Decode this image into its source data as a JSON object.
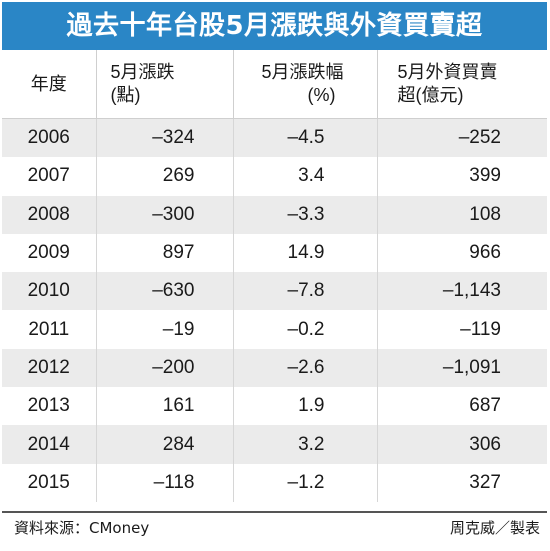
{
  "title": "過去十年台股5月漲跌與外資買賣超",
  "headers": {
    "year": "年度",
    "points_l1": "5月漲跌",
    "points_l2": "(點)",
    "pct_l1": "5月漲跌幅",
    "pct_l2": "(%)",
    "foreign_l1": "5月外資買賣",
    "foreign_l2": "超(億元)"
  },
  "rows": [
    {
      "year": "2006",
      "points": "–324",
      "pct": "–4.5",
      "foreign": "–252"
    },
    {
      "year": "2007",
      "points": "269",
      "pct": "3.4",
      "foreign": "399"
    },
    {
      "year": "2008",
      "points": "–300",
      "pct": "–3.3",
      "foreign": "108"
    },
    {
      "year": "2009",
      "points": "897",
      "pct": "14.9",
      "foreign": "966"
    },
    {
      "year": "2010",
      "points": "–630",
      "pct": "–7.8",
      "foreign": "–1,143"
    },
    {
      "year": "2011",
      "points": "–19",
      "pct": "–0.2",
      "foreign": "–119"
    },
    {
      "year": "2012",
      "points": "–200",
      "pct": "–2.6",
      "foreign": "–1,091"
    },
    {
      "year": "2013",
      "points": "161",
      "pct": "1.9",
      "foreign": "687"
    },
    {
      "year": "2014",
      "points": "284",
      "pct": "3.2",
      "foreign": "306"
    },
    {
      "year": "2015",
      "points": "–118",
      "pct": "–1.2",
      "foreign": "327"
    }
  ],
  "footer": {
    "source": "資料來源：CMoney",
    "credit": "周克威／製表"
  },
  "colors": {
    "title_bg": "#2a86c6",
    "title_text": "#ffffff",
    "shaded_row": "#ebebeb",
    "plain_row": "#ffffff"
  }
}
